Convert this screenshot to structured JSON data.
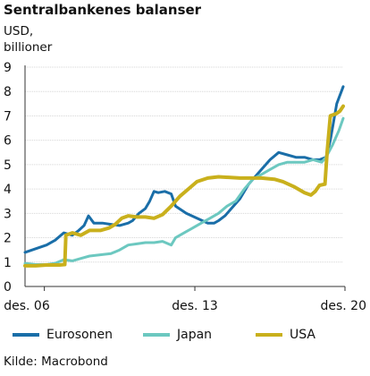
{
  "chart_data": {
    "type": "line",
    "title": "Sentralbankenes balanser",
    "ylabel_line1": "USD,",
    "ylabel_line2": "billioner",
    "source": "Kilde: Macrobond",
    "ylim": [
      0,
      9
    ],
    "yticks": [
      "0",
      "1",
      "2",
      "3",
      "4",
      "5",
      "6",
      "7",
      "8",
      "9"
    ],
    "xlim": [
      2006.0,
      2020.8
    ],
    "xticks": [
      {
        "x": 2006.9,
        "label": "des. 06"
      },
      {
        "x": 2013.9,
        "label": "des. 13"
      },
      {
        "x": 2020.9,
        "label": "des. 20"
      }
    ],
    "grid": true,
    "legend_position": "bottom",
    "series": [
      {
        "name": "Eurosonen",
        "color": "#1a6ea8",
        "points": [
          [
            2006.0,
            1.4
          ],
          [
            2006.5,
            1.55
          ],
          [
            2007.0,
            1.7
          ],
          [
            2007.4,
            1.9
          ],
          [
            2007.8,
            2.2
          ],
          [
            2008.2,
            2.1
          ],
          [
            2008.5,
            2.3
          ],
          [
            2008.75,
            2.5
          ],
          [
            2008.95,
            2.9
          ],
          [
            2009.2,
            2.6
          ],
          [
            2009.6,
            2.6
          ],
          [
            2010.0,
            2.55
          ],
          [
            2010.4,
            2.5
          ],
          [
            2010.8,
            2.6
          ],
          [
            2011.0,
            2.7
          ],
          [
            2011.3,
            3.0
          ],
          [
            2011.6,
            3.2
          ],
          [
            2011.8,
            3.5
          ],
          [
            2012.0,
            3.9
          ],
          [
            2012.2,
            3.85
          ],
          [
            2012.5,
            3.9
          ],
          [
            2012.8,
            3.8
          ],
          [
            2013.0,
            3.3
          ],
          [
            2013.5,
            3.0
          ],
          [
            2014.0,
            2.8
          ],
          [
            2014.5,
            2.6
          ],
          [
            2014.8,
            2.6
          ],
          [
            2015.0,
            2.7
          ],
          [
            2015.3,
            2.9
          ],
          [
            2015.6,
            3.2
          ],
          [
            2016.0,
            3.6
          ],
          [
            2016.4,
            4.2
          ],
          [
            2016.7,
            4.5
          ],
          [
            2017.0,
            4.8
          ],
          [
            2017.4,
            5.2
          ],
          [
            2017.8,
            5.5
          ],
          [
            2018.2,
            5.4
          ],
          [
            2018.6,
            5.3
          ],
          [
            2019.0,
            5.3
          ],
          [
            2019.4,
            5.2
          ],
          [
            2019.7,
            5.2
          ],
          [
            2020.0,
            5.3
          ],
          [
            2020.2,
            6.0
          ],
          [
            2020.5,
            7.5
          ],
          [
            2020.8,
            8.2
          ]
        ]
      },
      {
        "name": "Japan",
        "color": "#6cc8c0",
        "points": [
          [
            2006.0,
            0.95
          ],
          [
            2006.5,
            0.9
          ],
          [
            2007.0,
            0.9
          ],
          [
            2007.4,
            0.95
          ],
          [
            2007.8,
            1.1
          ],
          [
            2008.2,
            1.05
          ],
          [
            2008.6,
            1.15
          ],
          [
            2009.0,
            1.25
          ],
          [
            2009.5,
            1.3
          ],
          [
            2010.0,
            1.35
          ],
          [
            2010.4,
            1.5
          ],
          [
            2010.8,
            1.7
          ],
          [
            2011.2,
            1.75
          ],
          [
            2011.6,
            1.8
          ],
          [
            2012.0,
            1.8
          ],
          [
            2012.4,
            1.85
          ],
          [
            2012.8,
            1.7
          ],
          [
            2013.0,
            2.0
          ],
          [
            2013.4,
            2.2
          ],
          [
            2013.8,
            2.4
          ],
          [
            2014.2,
            2.6
          ],
          [
            2014.6,
            2.8
          ],
          [
            2015.0,
            3.0
          ],
          [
            2015.4,
            3.3
          ],
          [
            2015.8,
            3.5
          ],
          [
            2016.2,
            4.0
          ],
          [
            2016.6,
            4.4
          ],
          [
            2017.0,
            4.6
          ],
          [
            2017.4,
            4.8
          ],
          [
            2017.8,
            5.0
          ],
          [
            2018.2,
            5.1
          ],
          [
            2018.6,
            5.1
          ],
          [
            2019.0,
            5.1
          ],
          [
            2019.4,
            5.2
          ],
          [
            2019.8,
            5.1
          ],
          [
            2020.0,
            5.3
          ],
          [
            2020.3,
            5.8
          ],
          [
            2020.6,
            6.4
          ],
          [
            2020.8,
            6.9
          ]
        ]
      },
      {
        "name": "USA",
        "color": "#c9b01c",
        "points": [
          [
            2006.0,
            0.85
          ],
          [
            2006.5,
            0.85
          ],
          [
            2007.0,
            0.88
          ],
          [
            2007.6,
            0.88
          ],
          [
            2007.85,
            0.9
          ],
          [
            2007.9,
            2.1
          ],
          [
            2008.2,
            2.2
          ],
          [
            2008.6,
            2.1
          ],
          [
            2009.0,
            2.3
          ],
          [
            2009.5,
            2.3
          ],
          [
            2009.9,
            2.4
          ],
          [
            2010.2,
            2.55
          ],
          [
            2010.5,
            2.8
          ],
          [
            2010.8,
            2.9
          ],
          [
            2011.2,
            2.85
          ],
          [
            2011.6,
            2.85
          ],
          [
            2012.0,
            2.8
          ],
          [
            2012.4,
            2.95
          ],
          [
            2012.8,
            3.3
          ],
          [
            2013.2,
            3.7
          ],
          [
            2013.6,
            4.0
          ],
          [
            2014.0,
            4.3
          ],
          [
            2014.5,
            4.45
          ],
          [
            2015.0,
            4.5
          ],
          [
            2016.0,
            4.45
          ],
          [
            2017.0,
            4.45
          ],
          [
            2017.6,
            4.4
          ],
          [
            2018.0,
            4.3
          ],
          [
            2018.5,
            4.1
          ],
          [
            2019.0,
            3.85
          ],
          [
            2019.3,
            3.75
          ],
          [
            2019.5,
            3.9
          ],
          [
            2019.7,
            4.15
          ],
          [
            2019.95,
            4.2
          ],
          [
            2020.05,
            5.5
          ],
          [
            2020.2,
            7.0
          ],
          [
            2020.5,
            7.1
          ],
          [
            2020.65,
            7.2
          ],
          [
            2020.8,
            7.4
          ]
        ]
      }
    ]
  }
}
